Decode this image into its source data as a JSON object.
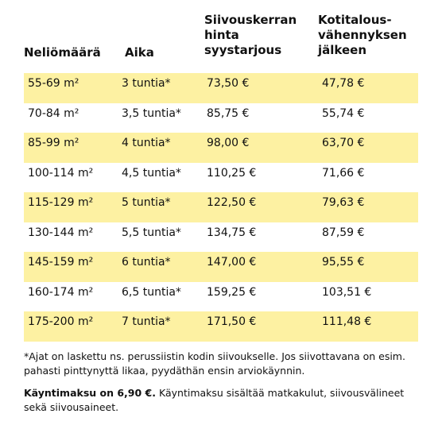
{
  "header": [
    "Neliömäärä",
    "Aika",
    [
      "Siivouskerran",
      "hinta",
      "syystarjous"
    ],
    [
      "Kotitalous-",
      "vähennyksen",
      "jälkeen"
    ]
  ],
  "rows": [
    [
      "55-69 m²",
      "3 tuntia*",
      "73,50 €",
      "47,78 €"
    ],
    [
      "70-84 m²",
      "3,5 tuntia*",
      "85,75 €",
      "55,74 €"
    ],
    [
      "85-99 m²",
      "4 tuntia*",
      "98,00 €",
      "63,70 €"
    ],
    [
      "100-114 m²",
      "4,5 tuntia*",
      "110,25 €",
      "71,66 €"
    ],
    [
      "115-129 m²",
      "5 tuntia*",
      "122,50 €",
      "79,63 €"
    ],
    [
      "130-144 m²",
      "5,5 tuntia*",
      "134,75 €",
      "87,59 €"
    ],
    [
      "145-159 m²",
      "6 tuntia*",
      "147,00 €",
      "95,55 €"
    ],
    [
      "160-174 m²",
      "6,5 tuntia*",
      "159,25 €",
      "103,51 €"
    ],
    [
      "175-200 m²",
      "7 tuntia*",
      "171,50 €",
      "111,48 €"
    ]
  ],
  "footnotes": [
    "*Ajat on laskettu ns. perussiistin kodin siivoukselle. Jos siivottavana on esim. pahasti pinttynyttä likaa, pyydäthän ensin arviokäynnin.",
    {
      "bold": "Käyntimaksu on 6,90 €.",
      "text": "Käyntimaksu sisältää matkakulut, siivousvälineet sekä siivousaineet."
    }
  ]
}
